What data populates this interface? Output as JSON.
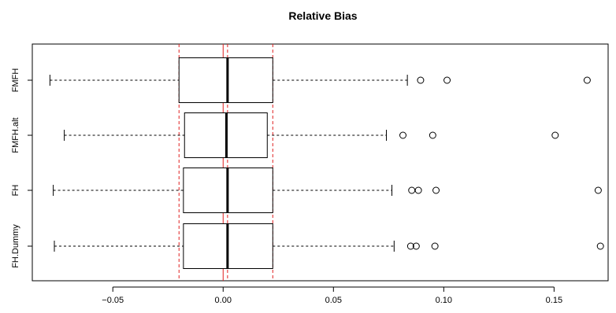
{
  "chart_data": {
    "type": "boxplot",
    "orientation": "horizontal",
    "title": "Relative Bias",
    "xlabel": "",
    "ylabel": "",
    "xlim": [
      -0.0865,
      0.1745
    ],
    "x_ticks": [
      -0.05,
      0.0,
      0.05,
      0.1,
      0.15
    ],
    "x_tick_labels": [
      "−0.05",
      "0.00",
      "0.05",
      "0.10",
      "0.15"
    ],
    "categories": [
      "FH.Dummy",
      "FH",
      "FMFH.alt",
      "FMFH"
    ],
    "boxes": [
      {
        "name": "FH.Dummy",
        "whisker_low": -0.0765,
        "q1": -0.018,
        "median": 0.002,
        "q3": 0.0225,
        "whisker_high": 0.0775,
        "outliers": [
          0.085,
          0.0875,
          0.096,
          0.171
        ]
      },
      {
        "name": "FH",
        "whisker_low": -0.077,
        "q1": -0.018,
        "median": 0.002,
        "q3": 0.0225,
        "whisker_high": 0.0765,
        "outliers": [
          0.0855,
          0.0885,
          0.0965,
          0.17
        ]
      },
      {
        "name": "FMFH.alt",
        "whisker_low": -0.072,
        "q1": -0.0175,
        "median": 0.0015,
        "q3": 0.02,
        "whisker_high": 0.074,
        "outliers": [
          0.0815,
          0.095,
          0.1505
        ]
      },
      {
        "name": "FMFH",
        "whisker_low": -0.0785,
        "q1": -0.02,
        "median": 0.002,
        "q3": 0.0225,
        "whisker_high": 0.0835,
        "outliers": [
          0.0895,
          0.1015,
          0.165
        ]
      }
    ],
    "reference_lines": [
      {
        "value": -0.02,
        "style": "dashed",
        "color": "#e02020"
      },
      {
        "value": 0.0,
        "style": "solid",
        "color": "#e02020"
      },
      {
        "value": 0.002,
        "style": "dashed",
        "color": "#e02020"
      },
      {
        "value": 0.0225,
        "style": "dashed",
        "color": "#e02020"
      }
    ],
    "grid": false,
    "legend": "none"
  }
}
